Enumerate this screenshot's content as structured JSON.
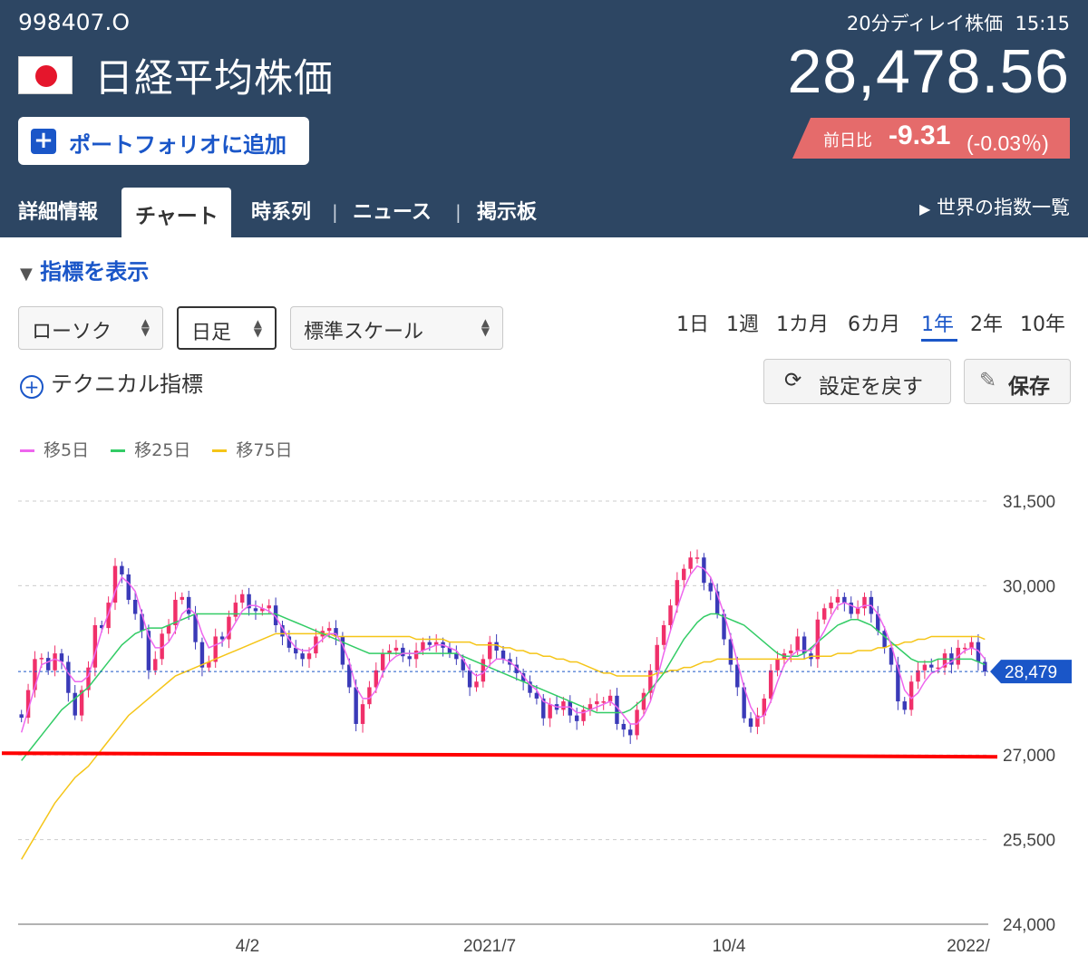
{
  "header": {
    "code": "998407.O",
    "name": "日経平均株価",
    "add_portfolio": "ポートフォリオに追加",
    "delay_label": "20分ディレイ株価",
    "time": "15:15",
    "price": "28,478.56",
    "change_label": "前日比",
    "change_value": "-9.31",
    "change_pct": "(-0.03％)",
    "accent": "#2d4663",
    "down_color": "#e56b6b"
  },
  "tabs": [
    {
      "label": "詳細情報"
    },
    {
      "label": "チャート",
      "active": true
    },
    {
      "label": "時系列"
    },
    {
      "label": "ニュース"
    },
    {
      "label": "掲示板"
    }
  ],
  "world_link": "世界の指数一覧",
  "controls": {
    "indicator_toggle": "指標を表示",
    "chart_type": "ローソク",
    "period": "日足",
    "scale": "標準スケール",
    "ranges": [
      "1日",
      "1週",
      "1カ月",
      "6カ月",
      "1年",
      "2年",
      "10年"
    ],
    "active_range": "1年",
    "technical": "テクニカル指標",
    "reset": "設定を戻す",
    "save": "保存"
  },
  "chart_data": {
    "type": "candlestick",
    "legend": [
      {
        "name": "移5日",
        "color": "#ee66ee"
      },
      {
        "name": "移25日",
        "color": "#33cc66"
      },
      {
        "name": "移75日",
        "color": "#f5c518"
      }
    ],
    "y_ticks": [
      "31,500",
      "30,000",
      "27,000",
      "25,500",
      "24,000"
    ],
    "ylim": [
      24000,
      31500
    ],
    "x_ticks": [
      "4/2",
      "2021/7",
      "10/4",
      "2022/"
    ],
    "last_price_label": "28,479",
    "last_price": 28479,
    "reference_line": 27000,
    "reference_line_color": "#ff0000",
    "up_color": "#f0306a",
    "down_color": "#3a3ab8",
    "last_price_color": "#1a56c8",
    "close_series": [
      27660,
      28150,
      28700,
      28720,
      28500,
      28800,
      28650,
      28100,
      27700,
      28150,
      28550,
      29300,
      29250,
      29700,
      30350,
      30200,
      29750,
      29500,
      29200,
      28500,
      28700,
      29150,
      29300,
      29750,
      29800,
      29500,
      29000,
      28550,
      28650,
      29100,
      29050,
      29450,
      29700,
      29850,
      29600,
      29550,
      29600,
      29650,
      29300,
      29100,
      28900,
      28800,
      28700,
      28800,
      29100,
      29200,
      29250,
      29100,
      28600,
      28200,
      27550,
      27900,
      28200,
      28500,
      28800,
      28850,
      28900,
      28750,
      28700,
      28850,
      29000,
      28950,
      29000,
      28900,
      28800,
      28700,
      28500,
      28200,
      28300,
      28700,
      29000,
      28850,
      28700,
      28600,
      28450,
      28300,
      28100,
      28000,
      27650,
      27900,
      27800,
      27950,
      27700,
      27600,
      27800,
      27900,
      27950,
      27950,
      28050,
      27550,
      27450,
      27350,
      27800,
      28100,
      28500,
      28950,
      29300,
      29650,
      30100,
      30300,
      30500,
      30500,
      30050,
      29900,
      29500,
      29050,
      28600,
      28200,
      27650,
      27500,
      27700,
      28000,
      28500,
      28700,
      28800,
      28850,
      29100,
      28800,
      28700,
      29400,
      29600,
      29700,
      29800,
      29700,
      29500,
      29600,
      29800,
      29500,
      29200,
      28900,
      28600,
      27950,
      27800,
      28300,
      28500,
      28600,
      28550,
      28550,
      28800,
      28600,
      28900,
      28900,
      29000,
      28650,
      28479
    ],
    "ma5_series": [
      27400,
      27800,
      28200,
      28600,
      28650,
      28700,
      28650,
      28450,
      28300,
      28300,
      28400,
      28800,
      29200,
      29500,
      29900,
      30150,
      30050,
      29900,
      29500,
      29100,
      28900,
      28900,
      29000,
      29200,
      29500,
      29600,
      29500,
      29150,
      28900,
      28950,
      29000,
      29150,
      29350,
      29550,
      29650,
      29650,
      29600,
      29550,
      29450,
      29250,
      29050,
      28900,
      28850,
      28850,
      28950,
      29050,
      29150,
      29150,
      28950,
      28650,
      28200,
      28000,
      28000,
      28150,
      28450,
      28650,
      28750,
      28800,
      28800,
      28800,
      28850,
      28900,
      28950,
      28950,
      28900,
      28850,
      28700,
      28500,
      28400,
      28450,
      28600,
      28700,
      28700,
      28650,
      28550,
      28400,
      28250,
      28150,
      27950,
      27900,
      27850,
      27850,
      27850,
      27750,
      27750,
      27800,
      27850,
      27900,
      27950,
      27850,
      27700,
      27550,
      27550,
      27700,
      27950,
      28350,
      28800,
      29200,
      29600,
      29950,
      30200,
      30350,
      30300,
      30150,
      29850,
      29500,
      29100,
      28650,
      28200,
      27850,
      27650,
      27700,
      27950,
      28300,
      28600,
      28750,
      28850,
      28850,
      28850,
      29000,
      29200,
      29450,
      29650,
      29700,
      29650,
      29600,
      29650,
      29650,
      29500,
      29250,
      28950,
      28550,
      28150,
      28000,
      28100,
      28300,
      28450,
      28500,
      28600,
      28650,
      28750,
      28850,
      28900,
      28850,
      28700
    ],
    "ma25_series": [
      26900,
      27050,
      27200,
      27350,
      27500,
      27650,
      27800,
      27900,
      28000,
      28100,
      28200,
      28350,
      28500,
      28650,
      28800,
      28950,
      29050,
      29150,
      29200,
      29250,
      29250,
      29250,
      29300,
      29350,
      29400,
      29450,
      29500,
      29500,
      29500,
      29500,
      29500,
      29500,
      29500,
      29500,
      29500,
      29500,
      29500,
      29500,
      29500,
      29450,
      29400,
      29350,
      29300,
      29250,
      29200,
      29150,
      29100,
      29050,
      29000,
      28950,
      28900,
      28850,
      28800,
      28800,
      28800,
      28800,
      28800,
      28800,
      28800,
      28800,
      28800,
      28800,
      28800,
      28800,
      28800,
      28800,
      28750,
      28700,
      28650,
      28600,
      28550,
      28500,
      28450,
      28400,
      28350,
      28300,
      28250,
      28200,
      28150,
      28100,
      28050,
      28000,
      27950,
      27900,
      27850,
      27800,
      27750,
      27750,
      27750,
      27750,
      27750,
      27800,
      27900,
      28000,
      28150,
      28300,
      28450,
      28650,
      28850,
      29050,
      29200,
      29350,
      29450,
      29500,
      29500,
      29450,
      29400,
      29350,
      29300,
      29200,
      29100,
      29000,
      28900,
      28800,
      28750,
      28750,
      28750,
      28800,
      28900,
      29000,
      29100,
      29200,
      29300,
      29350,
      29400,
      29400,
      29350,
      29300,
      29200,
      29100,
      29000,
      28900,
      28800,
      28700,
      28650,
      28650,
      28650,
      28700,
      28700,
      28700,
      28700,
      28700,
      28700,
      28650,
      28600
    ],
    "ma75_series": [
      25150,
      25350,
      25550,
      25750,
      25950,
      26150,
      26300,
      26450,
      26600,
      26700,
      26800,
      26950,
      27100,
      27250,
      27400,
      27550,
      27700,
      27800,
      27900,
      28000,
      28100,
      28200,
      28300,
      28400,
      28450,
      28500,
      28550,
      28600,
      28650,
      28700,
      28750,
      28800,
      28850,
      28900,
      28950,
      29000,
      29050,
      29100,
      29150,
      29150,
      29150,
      29150,
      29150,
      29150,
      29150,
      29150,
      29150,
      29100,
      29100,
      29100,
      29100,
      29100,
      29100,
      29100,
      29100,
      29100,
      29100,
      29100,
      29100,
      29050,
      29050,
      29050,
      29050,
      29050,
      29000,
      29000,
      29000,
      29000,
      28950,
      28950,
      28950,
      28950,
      28900,
      28900,
      28850,
      28850,
      28800,
      28800,
      28750,
      28750,
      28700,
      28700,
      28650,
      28650,
      28600,
      28550,
      28500,
      28450,
      28450,
      28400,
      28400,
      28400,
      28400,
      28400,
      28400,
      28450,
      28450,
      28500,
      28500,
      28550,
      28550,
      28600,
      28650,
      28650,
      28700,
      28700,
      28700,
      28700,
      28700,
      28700,
      28700,
      28700,
      28700,
      28700,
      28700,
      28700,
      28700,
      28700,
      28750,
      28750,
      28750,
      28750,
      28800,
      28800,
      28800,
      28850,
      28850,
      28850,
      28900,
      28900,
      28950,
      28950,
      29000,
      29000,
      29050,
      29050,
      29100,
      29100,
      29100,
      29100,
      29100,
      29100,
      29100,
      29100,
      29050
    ]
  }
}
